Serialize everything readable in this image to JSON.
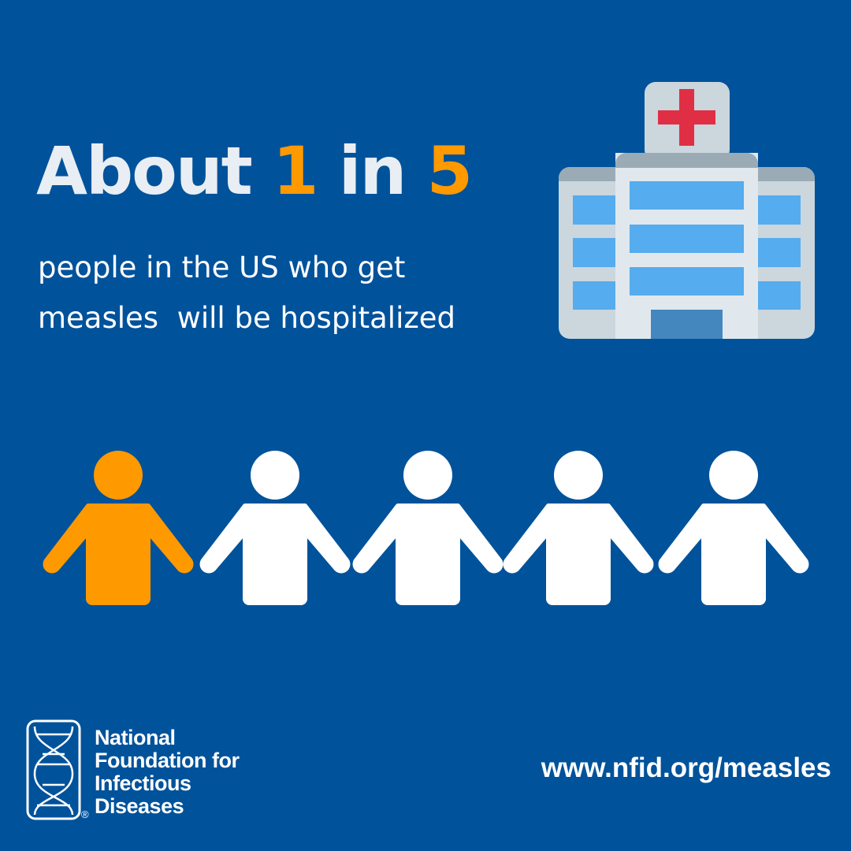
{
  "headline": {
    "prefix": "About ",
    "num1": "1",
    "mid": " in ",
    "num2": "5"
  },
  "subtitle": {
    "line1": "people in the US who get",
    "line2": "measles  will be hospitalized"
  },
  "people": {
    "total": 5,
    "highlighted": 1
  },
  "colors": {
    "background": "#00529B",
    "accent": "#FF9900",
    "cross": "#E02F44",
    "window": "#55ACEE"
  },
  "icons": {
    "building": "hospital-icon",
    "person": "person-icon",
    "logo": "dna-helix-logo"
  },
  "footer": {
    "org_line1": "National",
    "org_line2": "Foundation for",
    "org_line3": "Infectious",
    "org_line4": "Diseases",
    "registered": "®",
    "url": "www.nfid.org/measles"
  }
}
